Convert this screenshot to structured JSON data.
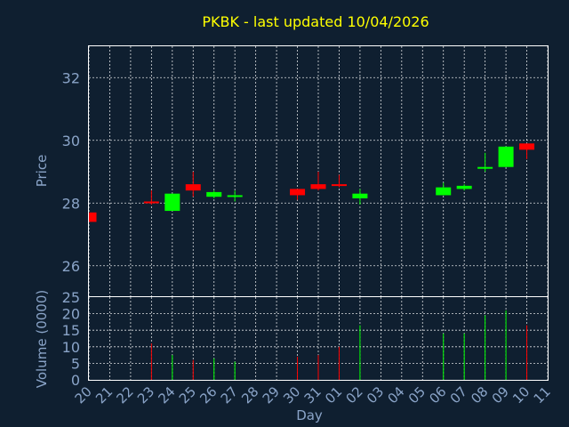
{
  "chart_data": {
    "type": "candlestick",
    "title": "PKBK - last updated 10/04/2026",
    "xlabel": "Day",
    "price_ylabel": "Price",
    "volume_ylabel": "Volume (0000)",
    "x_ticks": [
      "20",
      "21",
      "22",
      "23",
      "24",
      "25",
      "26",
      "27",
      "28",
      "29",
      "30",
      "31",
      "01",
      "02",
      "03",
      "04",
      "05",
      "06",
      "07",
      "08",
      "09",
      "10",
      "11"
    ],
    "price_ylim": [
      25,
      33
    ],
    "price_ticks": [
      26,
      28,
      30,
      32
    ],
    "volume_ylim": [
      0,
      25
    ],
    "volume_ticks": [
      0,
      5,
      10,
      15,
      20,
      25
    ],
    "up_color": "#00ff00",
    "down_color": "#ff0000",
    "candles": [
      {
        "day": "20",
        "open": 27.7,
        "close": 27.4,
        "high": 27.7,
        "low": 27.4,
        "volume": 0
      },
      {
        "day": "23",
        "open": 28.05,
        "close": 28.0,
        "high": 28.4,
        "low": 27.95,
        "volume": 11
      },
      {
        "day": "24",
        "open": 27.75,
        "close": 28.3,
        "high": 28.3,
        "low": 27.75,
        "volume": 7.5
      },
      {
        "day": "25",
        "open": 28.6,
        "close": 28.4,
        "high": 29.0,
        "low": 28.2,
        "volume": 6
      },
      {
        "day": "26",
        "open": 28.2,
        "close": 28.35,
        "high": 28.4,
        "low": 28.15,
        "volume": 6.5
      },
      {
        "day": "27",
        "open": 28.2,
        "close": 28.25,
        "high": 28.4,
        "low": 28.05,
        "volume": 5.5
      },
      {
        "day": "30",
        "open": 28.45,
        "close": 28.25,
        "high": 28.45,
        "low": 28.1,
        "volume": 7
      },
      {
        "day": "31",
        "open": 28.6,
        "close": 28.45,
        "high": 29.0,
        "low": 28.4,
        "volume": 7.5
      },
      {
        "day": "01",
        "open": 28.6,
        "close": 28.55,
        "high": 28.9,
        "low": 28.5,
        "volume": 10
      },
      {
        "day": "02",
        "open": 28.15,
        "close": 28.3,
        "high": 28.45,
        "low": 27.95,
        "volume": 16.5
      },
      {
        "day": "06",
        "open": 28.25,
        "close": 28.5,
        "high": 28.65,
        "low": 28.25,
        "volume": 14
      },
      {
        "day": "07",
        "open": 28.45,
        "close": 28.55,
        "high": 28.6,
        "low": 28.4,
        "volume": 14
      },
      {
        "day": "08",
        "open": 29.1,
        "close": 29.15,
        "high": 29.6,
        "low": 29.0,
        "volume": 19.5
      },
      {
        "day": "09",
        "open": 29.15,
        "close": 29.8,
        "high": 29.8,
        "low": 29.15,
        "volume": 21
      },
      {
        "day": "10",
        "open": 29.9,
        "close": 29.7,
        "high": 29.9,
        "low": 29.4,
        "volume": 16.5
      }
    ]
  }
}
